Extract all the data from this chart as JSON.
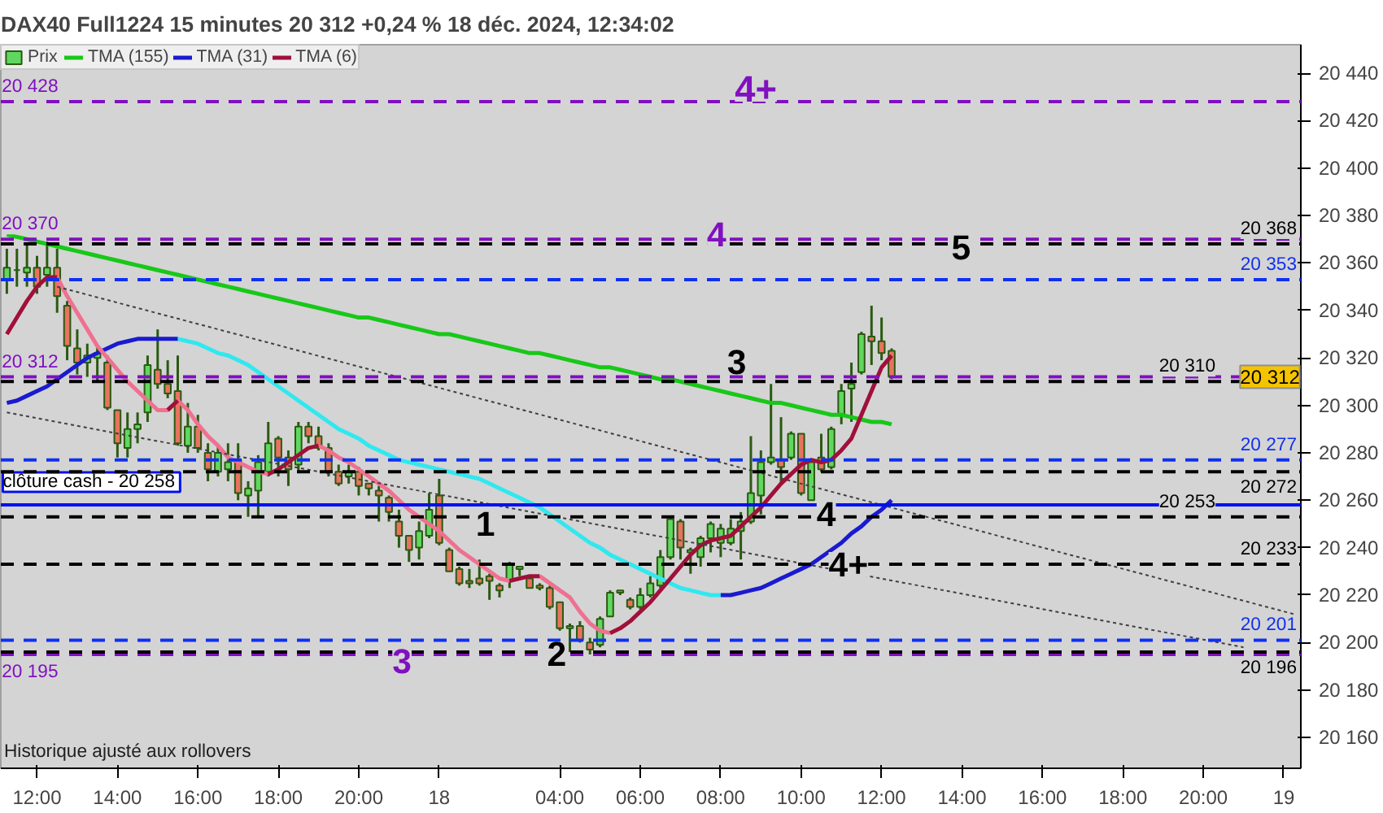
{
  "chart_data": {
    "type": "candlestick",
    "title": "DAX40 Full1224 15 minutes 20 312 +0,24 % 18 déc. 2024, 12:34:02",
    "categories": [
      null,
      null,
      null,
      "12:00",
      null,
      null,
      null,
      null,
      null,
      null,
      null,
      "14:00",
      null,
      null,
      null,
      null,
      null,
      null,
      null,
      "16:00",
      null,
      null,
      null,
      null,
      null,
      null,
      null,
      "18:00",
      null,
      null,
      null,
      null,
      null,
      null,
      null,
      "20:00",
      null,
      null,
      null,
      null,
      null,
      null,
      null,
      "18",
      null,
      null,
      null,
      null,
      null,
      null,
      null,
      null,
      null,
      null,
      null,
      "04:00",
      null,
      null,
      null,
      null,
      null,
      null,
      null,
      "06:00",
      null,
      null,
      null,
      null,
      null,
      null,
      null,
      "08:00",
      null,
      null,
      null,
      null,
      null,
      null,
      null,
      "10:00",
      null,
      null,
      null,
      null,
      null,
      null,
      null,
      "12:00",
      null,
      null,
      null,
      null,
      null,
      null,
      null,
      "14:00",
      null,
      null,
      null,
      null,
      null,
      null,
      null,
      "16:00",
      null,
      null,
      null,
      null,
      null,
      null,
      null,
      "18:00",
      null,
      null,
      null,
      null,
      null,
      null,
      null,
      "20:00",
      null,
      null,
      null,
      null,
      null,
      null,
      null,
      "19",
      null
    ],
    "ylim": [
      20147,
      20452
    ],
    "yticks": [
      {
        "value": 20160,
        "label": "20 160"
      },
      {
        "value": 20180,
        "label": "20 180"
      },
      {
        "value": 20200,
        "label": "20 200"
      },
      {
        "value": 20220,
        "label": "20 220"
      },
      {
        "value": 20240,
        "label": "20 240"
      },
      {
        "value": 20260,
        "label": "20 260"
      },
      {
        "value": 20280,
        "label": "20 280"
      },
      {
        "value": 20300,
        "label": "20 300"
      },
      {
        "value": 20320,
        "label": "20 320"
      },
      {
        "value": 20340,
        "label": "20 340"
      },
      {
        "value": 20360,
        "label": "20 360"
      },
      {
        "value": 20380,
        "label": "20 380"
      },
      {
        "value": 20400,
        "label": "20 400"
      },
      {
        "value": 20420,
        "label": "20 420"
      },
      {
        "value": 20440,
        "label": "20 440"
      }
    ],
    "legend": "top left",
    "series": [
      {
        "name": "Prix",
        "ohlc": [
          [
            20353,
            20366,
            20347,
            20358
          ],
          [
            20357,
            20366,
            20350,
            20357
          ],
          [
            20356,
            20368,
            20350,
            20358
          ],
          [
            20358,
            20363,
            20347,
            20350
          ],
          [
            20355,
            20369,
            20350,
            20358
          ],
          [
            20358,
            20366,
            20339,
            20346
          ],
          [
            20342,
            20344,
            20319,
            20325
          ],
          [
            20324,
            20332,
            20313,
            20318
          ],
          [
            20318,
            20326,
            20312,
            20321
          ],
          [
            20320,
            20325,
            20310,
            20322
          ],
          [
            20318,
            20321,
            20298,
            20299
          ],
          [
            20298,
            20298,
            20278,
            20284
          ],
          [
            20282,
            20297,
            20278,
            20290
          ],
          [
            20290,
            20297,
            20284,
            20292
          ],
          [
            20297,
            20321,
            20293,
            20317
          ],
          [
            20315,
            20332,
            20307,
            20309
          ],
          [
            20309,
            20319,
            20303,
            20305
          ],
          [
            20306,
            20321,
            20283,
            20284
          ],
          [
            20283,
            20301,
            20280,
            20291
          ],
          [
            20291,
            20296,
            20280,
            20282
          ],
          [
            20280,
            20284,
            20268,
            20273
          ],
          [
            20272,
            20283,
            20270,
            20280
          ],
          [
            20273,
            20284,
            20268,
            20276
          ],
          [
            20277,
            20284,
            20260,
            20263
          ],
          [
            20262,
            20268,
            20253,
            20265
          ],
          [
            20264,
            20279,
            20253,
            20276
          ],
          [
            20272,
            20293,
            20270,
            20284
          ],
          [
            20286,
            20287,
            20270,
            20278
          ],
          [
            20278,
            20281,
            20266,
            20273
          ],
          [
            20275,
            20293,
            20272,
            20291
          ],
          [
            20291,
            20293,
            20284,
            20287
          ],
          [
            20287,
            20291,
            20281,
            20282
          ],
          [
            20282,
            20284,
            20270,
            20272
          ],
          [
            20272,
            20275,
            20266,
            20267
          ],
          [
            20270,
            20275,
            20267,
            20272
          ],
          [
            20272,
            20274,
            20262,
            20266
          ],
          [
            20267,
            20267,
            20262,
            20265
          ],
          [
            20264,
            20266,
            20251,
            20262
          ],
          [
            20261,
            20262,
            20251,
            20255
          ],
          [
            20251,
            20256,
            20240,
            20245
          ],
          [
            20245,
            20245,
            20234,
            20239
          ],
          [
            20240,
            20251,
            20235,
            20247
          ],
          [
            20245,
            20263,
            20244,
            20256
          ],
          [
            20262,
            20269,
            20241,
            20242
          ],
          [
            20239,
            20240,
            20230,
            20230
          ],
          [
            20231,
            20232,
            20224,
            20225
          ],
          [
            20226,
            20231,
            20223,
            20225
          ],
          [
            20227,
            20235,
            20224,
            20225
          ],
          [
            20228,
            20229,
            20218,
            20226
          ],
          [
            20224,
            20225,
            20219,
            20222
          ],
          [
            20226,
            20234,
            20223,
            20233
          ],
          [
            20231,
            20232,
            20228,
            20232
          ],
          [
            20227,
            20228,
            20223,
            20223
          ],
          [
            20224,
            20225,
            20222,
            20223
          ],
          [
            20223,
            20224,
            20214,
            20215
          ],
          [
            20217,
            20217,
            20205,
            20206
          ],
          [
            20206,
            20208,
            20196,
            20207
          ],
          [
            20207,
            20209,
            20200,
            20201
          ],
          [
            20200,
            20202,
            20195,
            20197
          ],
          [
            20199,
            20211,
            20198,
            20210
          ],
          [
            20211,
            20222,
            20211,
            20221
          ],
          [
            20221,
            20222,
            20220,
            20222
          ],
          [
            20218,
            20219,
            20214,
            20215
          ],
          [
            20215,
            20223,
            20214,
            20220
          ],
          [
            20220,
            20228,
            20219,
            20225
          ],
          [
            20224,
            20239,
            20223,
            20236
          ],
          [
            20236,
            20253,
            20235,
            20252
          ],
          [
            20251,
            20252,
            20235,
            20240
          ],
          [
            20238,
            20240,
            20229,
            20239
          ],
          [
            20236,
            20245,
            20232,
            20244
          ],
          [
            20244,
            20251,
            20238,
            20250
          ],
          [
            20242,
            20250,
            20236,
            20248
          ],
          [
            20242,
            20252,
            20241,
            20248
          ],
          [
            20247,
            20255,
            20235,
            20251
          ],
          [
            20251,
            20287,
            20250,
            20263
          ],
          [
            20262,
            20281,
            20254,
            20276
          ],
          [
            20276,
            20309,
            20275,
            20278
          ],
          [
            20277,
            20295,
            20267,
            20274
          ],
          [
            20278,
            20289,
            20277,
            20288
          ],
          [
            20288,
            20288,
            20262,
            20263
          ],
          [
            20260,
            20277,
            20260,
            20276
          ],
          [
            20278,
            20288,
            20272,
            20273
          ],
          [
            20274,
            20291,
            20273,
            20290
          ],
          [
            20296,
            20309,
            20292,
            20306
          ],
          [
            20307,
            20318,
            20293,
            20309
          ],
          [
            20314,
            20331,
            20313,
            20330
          ],
          [
            20329,
            20342,
            20317,
            20327
          ],
          [
            20327,
            20337,
            20319,
            20322
          ],
          [
            20323,
            20324,
            20311,
            20312
          ],
          null,
          null,
          null,
          null,
          null,
          null,
          null,
          null,
          null,
          null,
          null,
          null,
          null,
          null,
          null,
          null,
          null,
          null,
          null,
          null,
          null,
          null,
          null,
          null,
          null,
          null,
          null,
          null,
          null,
          null,
          null,
          null,
          null,
          null,
          null,
          null,
          null,
          null,
          null,
          null
        ]
      },
      {
        "name": "TMA (155)",
        "type": "line",
        "color": "#18c818",
        "values": [
          20372,
          20371,
          20370,
          20369,
          20368,
          20367,
          20366,
          20365,
          20364,
          20363,
          20362,
          20361,
          20360,
          20359,
          20358,
          20357,
          20356,
          20355,
          20354,
          20353,
          20352,
          20351,
          20350,
          20349,
          20348,
          20347,
          20346,
          20345,
          20344,
          20343,
          20342,
          20341,
          20340,
          20339,
          20338,
          20337,
          20337,
          20336,
          20335,
          20334,
          20333,
          20332,
          20331,
          20330,
          20330,
          20329,
          20328,
          20327,
          20326,
          20325,
          20324,
          20323,
          20322,
          20322,
          20321,
          20320,
          20319,
          20318,
          20317,
          20316,
          20316,
          20315,
          20314,
          20313,
          20312,
          20311,
          20311,
          20310,
          20309,
          20308,
          20307,
          20306,
          20305,
          20304,
          20303,
          20302,
          20301,
          20301,
          20300,
          20299,
          20298,
          20297,
          20296,
          20296,
          20295,
          20294,
          20293,
          20293,
          20292,
          null,
          null,
          null,
          null,
          null,
          null,
          null,
          null,
          null,
          null,
          null,
          null,
          null,
          null,
          null,
          null,
          null,
          null,
          null,
          null,
          null,
          null,
          null,
          null,
          null,
          null,
          null,
          null,
          null,
          null,
          null,
          null,
          null,
          null,
          null,
          null,
          null,
          null,
          null,
          null
        ]
      },
      {
        "type": "line",
        "color": "#30e8f0",
        "values": [
          null,
          null,
          null,
          null,
          null,
          null,
          null,
          null,
          null,
          null,
          null,
          null,
          null,
          null,
          null,
          null,
          null,
          20328,
          20327,
          20326,
          20324,
          20322,
          20321,
          20319,
          20317,
          20314,
          20311,
          20308,
          20305,
          20302,
          20299,
          20296,
          20293,
          20290,
          20288,
          20286,
          20283,
          20281,
          20279,
          20277,
          20276,
          20275,
          20274,
          20273,
          20272,
          20271,
          20270,
          20269,
          20267,
          20265,
          20263,
          20261,
          20259,
          20257,
          20254,
          20251,
          20248,
          20245,
          20242,
          20240,
          20237,
          20235,
          20233,
          20231,
          20229,
          20227,
          20225,
          20223,
          20222,
          20221,
          20220,
          20220,
          null,
          null,
          null,
          null,
          null,
          null,
          null,
          null,
          null,
          null,
          null,
          null,
          null,
          null,
          null,
          null,
          null,
          null,
          null,
          null,
          null,
          null,
          null,
          null,
          null,
          null,
          null,
          null,
          null,
          null,
          null,
          null,
          null,
          null,
          null,
          null,
          null,
          null,
          null,
          null,
          null,
          null,
          null,
          null,
          null,
          null,
          null,
          null,
          null,
          null,
          null,
          null,
          null,
          null,
          null,
          null,
          null
        ]
      },
      {
        "name": "TMA (31)",
        "type": "line",
        "color": "#1a1ad0",
        "values": [
          20301,
          20302,
          20304,
          20306,
          20308,
          20311,
          20314,
          20317,
          20320,
          20322,
          20324,
          20326,
          20327,
          20328,
          20328,
          20328,
          20328,
          20328,
          null,
          null,
          null,
          null,
          null,
          null,
          null,
          null,
          null,
          null,
          null,
          null,
          null,
          null,
          null,
          null,
          null,
          null,
          null,
          null,
          null,
          null,
          null,
          null,
          null,
          null,
          null,
          null,
          null,
          null,
          null,
          null,
          null,
          null,
          null,
          null,
          null,
          null,
          null,
          null,
          null,
          null,
          null,
          null,
          null,
          null,
          null,
          null,
          null,
          null,
          null,
          null,
          null,
          20220,
          20220,
          20221,
          20222,
          20223,
          20225,
          20227,
          20229,
          20231,
          20233,
          20236,
          20239,
          20242,
          20246,
          20249,
          20253,
          20256,
          20260,
          null,
          null,
          null,
          null,
          null,
          null,
          null,
          null,
          null,
          null,
          null,
          null,
          null,
          null,
          null,
          null,
          null,
          null,
          null,
          null,
          null,
          null,
          null,
          null,
          null,
          null,
          null,
          null,
          null,
          null,
          null,
          null,
          null,
          null,
          null,
          null,
          null,
          null,
          null,
          null
        ]
      },
      {
        "type": "line",
        "color": "#f07090",
        "values": [
          null,
          null,
          null,
          null,
          null,
          20354,
          20346,
          20339,
          20332,
          20325,
          20320,
          20315,
          20310,
          20306,
          20302,
          20298,
          20298,
          20302,
          20298,
          20292,
          20287,
          20283,
          20278,
          20276,
          20274,
          20272,
          20271,
          null,
          null,
          null,
          null,
          20283,
          20281,
          20278,
          20276,
          20273,
          20270,
          20267,
          20264,
          20260,
          20256,
          20253,
          20250,
          20247,
          20243,
          20239,
          20236,
          20233,
          20230,
          20227,
          20226,
          null,
          null,
          20228,
          20225,
          20222,
          20219,
          20213,
          20208,
          20205,
          20204,
          null,
          null,
          null,
          null,
          null,
          null,
          null,
          null,
          null,
          null,
          null,
          null,
          null,
          null,
          null,
          null,
          null,
          null,
          null,
          null,
          null,
          null,
          null,
          null,
          null,
          null,
          null,
          null,
          null,
          null,
          null,
          null,
          null,
          null,
          null,
          null,
          null,
          null,
          null,
          null,
          null,
          null,
          null,
          null,
          null,
          null,
          null,
          null,
          null,
          null,
          null,
          null,
          null,
          null,
          null,
          null,
          null,
          null,
          null,
          null,
          null,
          null,
          null,
          null,
          null,
          null,
          null,
          null
        ]
      },
      {
        "name": "TMA (6)",
        "type": "line",
        "color": "#a0103a",
        "values": [
          20330,
          20337,
          20344,
          20350,
          20354,
          20354,
          null,
          null,
          null,
          null,
          null,
          null,
          null,
          null,
          null,
          null,
          20298,
          20302,
          null,
          null,
          null,
          null,
          null,
          null,
          null,
          null,
          20271,
          20273,
          20276,
          20279,
          20282,
          20283,
          null,
          null,
          null,
          null,
          null,
          null,
          null,
          null,
          null,
          null,
          null,
          null,
          null,
          null,
          null,
          null,
          null,
          null,
          20226,
          20227,
          20228,
          20228,
          null,
          null,
          null,
          null,
          null,
          null,
          20204,
          20206,
          20209,
          20213,
          20217,
          20222,
          20227,
          20232,
          20237,
          20241,
          20243,
          20244,
          20245,
          20249,
          20253,
          20257,
          20262,
          20267,
          20271,
          20275,
          20277,
          20276,
          20277,
          20281,
          20286,
          20296,
          20306,
          20316,
          20321,
          null,
          null,
          null,
          null,
          null,
          null,
          null,
          null,
          null,
          null,
          null,
          null,
          null,
          null,
          null,
          null,
          null,
          null,
          null,
          null,
          null,
          null,
          null,
          null,
          null,
          null,
          null,
          null,
          null,
          null,
          null,
          null,
          null,
          null,
          null,
          null,
          null,
          null,
          null,
          null
        ]
      },
      {
        "type": "line",
        "color": "#404040",
        "line_style": "dotted",
        "values": [
          null,
          null,
          null,
          null,
          null,
          20350,
          null,
          null,
          null,
          null,
          null,
          null,
          null,
          null,
          null,
          null,
          null,
          null,
          null,
          null,
          null,
          null,
          null,
          null,
          null,
          null,
          null,
          null,
          null,
          null,
          null,
          null,
          null,
          null,
          null,
          null,
          null,
          null,
          null,
          null,
          null,
          null,
          null,
          null,
          null,
          null,
          null,
          null,
          null,
          null,
          null,
          null,
          null,
          null,
          null,
          null,
          null,
          null,
          null,
          null,
          null,
          null,
          null,
          null,
          null,
          null,
          null,
          null,
          null,
          null,
          null,
          null,
          null,
          null,
          null,
          null,
          null,
          null,
          null,
          null,
          null,
          null,
          null,
          null,
          null,
          null,
          null,
          null,
          null,
          null,
          null,
          null,
          null,
          null,
          null,
          null,
          null,
          null,
          null,
          null,
          null,
          null,
          null,
          null,
          null,
          null,
          null,
          null,
          null,
          null,
          null,
          null,
          null,
          null,
          null,
          null,
          null,
          null,
          null,
          null,
          null,
          null,
          null,
          null,
          null,
          null,
          null,
          null,
          20212
        ]
      },
      {
        "type": "line",
        "color": "#404040",
        "line_style": "dotted",
        "values": [
          20297,
          null,
          null,
          null,
          null,
          null,
          null,
          null,
          null,
          null,
          null,
          null,
          null,
          null,
          null,
          null,
          null,
          null,
          null,
          null,
          null,
          null,
          null,
          null,
          null,
          null,
          null,
          null,
          null,
          null,
          null,
          null,
          null,
          null,
          null,
          null,
          null,
          null,
          null,
          null,
          null,
          null,
          null,
          null,
          null,
          null,
          null,
          null,
          null,
          null,
          null,
          null,
          null,
          null,
          null,
          null,
          null,
          null,
          null,
          null,
          null,
          null,
          null,
          null,
          null,
          null,
          null,
          null,
          null,
          null,
          null,
          null,
          null,
          null,
          null,
          null,
          null,
          null,
          null,
          null,
          null,
          null,
          null,
          null,
          null,
          null,
          null,
          null,
          null,
          null,
          null,
          null,
          null,
          null,
          null,
          null,
          null,
          null,
          null,
          null,
          null,
          null,
          null,
          null,
          null,
          null,
          null,
          null,
          null,
          null,
          null,
          null,
          null,
          null,
          null,
          null,
          null,
          null,
          null,
          null,
          null,
          null,
          null,
          20198,
          null,
          null,
          null,
          null,
          null
        ]
      }
    ],
    "ref_lines": [
      {
        "axis": "y",
        "value": 20428,
        "label": "20 428",
        "color": "#8010c0",
        "line_style": "dashed"
      },
      {
        "axis": "y",
        "value": 20370,
        "label": "20 370",
        "color": "#8010c0",
        "line_style": "dashed"
      },
      {
        "axis": "y",
        "value": 20312,
        "label": "20 312",
        "color": "#8010c0",
        "line_style": "dashed"
      },
      {
        "axis": "y",
        "value": 20195,
        "label": "20 195",
        "color": "#8010c0",
        "line_style": "dashed"
      },
      {
        "axis": "y",
        "value": 20258,
        "label": "clôture cash -  20 258",
        "color": "#0010f0",
        "line_style": "solid"
      },
      {
        "axis": "y",
        "value": 20353,
        "label": "20 353",
        "color": "#1030f0",
        "line_style": "dashed"
      },
      {
        "axis": "y",
        "value": 20277,
        "label": "20 277",
        "color": "#1030f0",
        "line_style": "dashed"
      },
      {
        "axis": "y",
        "value": 20201,
        "label": "20 201",
        "color": "#1030f0",
        "line_style": "dashed"
      },
      {
        "axis": "y",
        "value": 20368,
        "label": "20 368",
        "color": "#000000",
        "line_style": "dashed"
      },
      {
        "axis": "y",
        "value": 20310,
        "label": "20 310",
        "color": "#000000",
        "line_style": "dashed"
      },
      {
        "axis": "y",
        "value": 20272,
        "label": "20 272",
        "color": "#000000",
        "line_style": "dashed"
      },
      {
        "axis": "y",
        "value": 20253,
        "label": "20 253",
        "color": "#000000",
        "line_style": "dashed"
      },
      {
        "axis": "y",
        "value": 20233,
        "label": "20 233",
        "color": "#000000",
        "line_style": "dashed"
      },
      {
        "axis": "y",
        "value": 20196,
        "label": "20 196",
        "color": "#000000",
        "line_style": "dashed"
      }
    ],
    "annotations": [
      {
        "text": "4+",
        "y": 20428
      },
      {
        "text": "4",
        "y": 20370
      },
      {
        "text": "3",
        "y": 20195
      },
      {
        "text": "5",
        "y": 20368
      },
      {
        "text": "3",
        "y": 20310
      },
      {
        "text": "4",
        "y": 20253
      },
      {
        "text": "4+",
        "y": 20233
      },
      {
        "text": "1",
        "y": 20250
      },
      {
        "text": "2",
        "y": 20198
      },
      {
        "text": "20 312",
        "y": 20312
      },
      "Historique ajusté aux rollovers"
    ]
  }
}
